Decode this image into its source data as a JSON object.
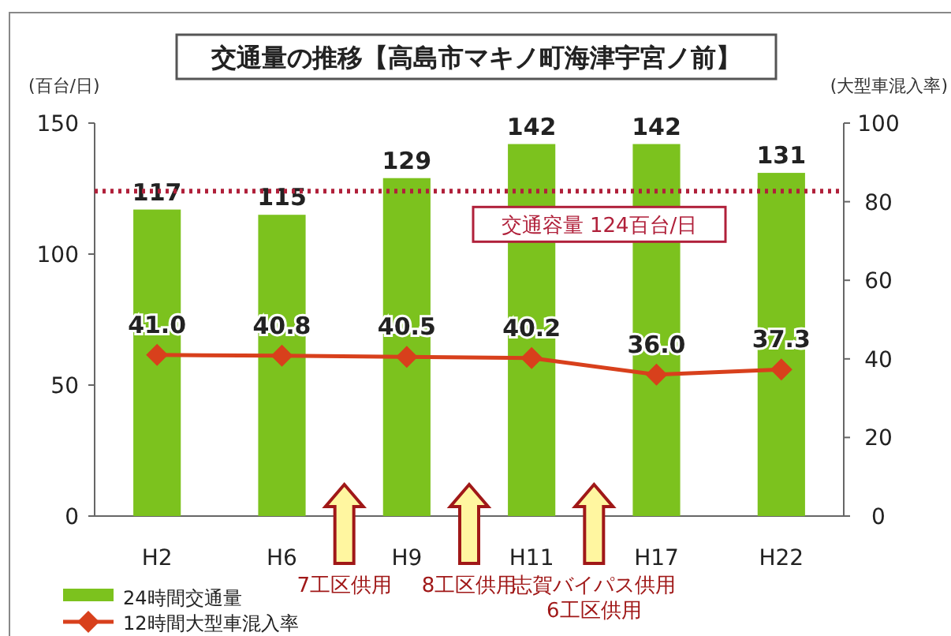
{
  "chart_data": {
    "type": "bar",
    "title": "交通量の推移【高島市マキノ町海津宇宮ノ前】",
    "ylabel": "(百台/日)",
    "y2label": "(大型車混入率)",
    "categories": [
      "H2",
      "H6",
      "H9",
      "H11",
      "H17",
      "H22"
    ],
    "series": [
      {
        "name": "24時間交通量",
        "type": "bar",
        "color": "#7cc21e",
        "values": [
          117,
          115,
          129,
          142,
          142,
          131
        ],
        "value_labels": [
          "117",
          "115",
          "129",
          "142",
          "142",
          "131"
        ]
      },
      {
        "name": "12時間大型車混入率",
        "type": "line",
        "axis": "y2",
        "color": "#d8401c",
        "values": [
          41.0,
          40.8,
          40.5,
          40.2,
          36.0,
          37.3
        ],
        "value_labels": [
          "41.0",
          "40.8",
          "40.5",
          "40.2",
          "36.0",
          "37.3"
        ]
      }
    ],
    "ylim": [
      0,
      150
    ],
    "yticks": [
      0,
      50,
      100,
      150
    ],
    "y2lim": [
      0,
      100
    ],
    "y2ticks": [
      0,
      20,
      40,
      60,
      80,
      100
    ],
    "ref_lines": [
      {
        "axis": "y",
        "value": 124,
        "label": "交通容量 124百台/日",
        "color": "#b0203a",
        "line_style": "dotted"
      }
    ],
    "annotations": [
      "7工区供用",
      "8工区供用",
      "志賀バイパス供用\n6工区供用"
    ],
    "marker": "diamond",
    "legend": "bottom left",
    "grid": false
  }
}
